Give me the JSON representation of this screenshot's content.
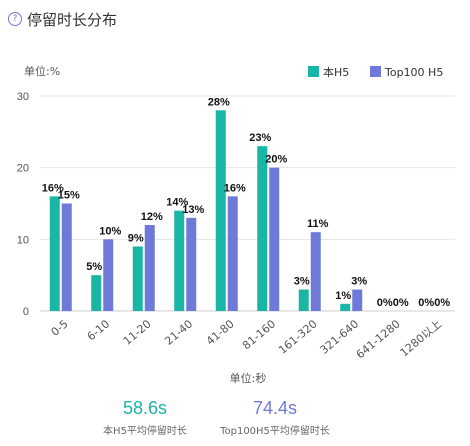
{
  "header": {
    "title": "停留时长分布",
    "help_icon": "help-circle-icon"
  },
  "chart_data": {
    "type": "bar",
    "ylabel": "单位:%",
    "xlabel": "单位:秒",
    "ylim": [
      0,
      30
    ],
    "yticks": [
      0,
      10,
      20,
      30
    ],
    "grid": true,
    "legend_position": "top-right",
    "categories": [
      "0-5",
      "6-10",
      "11-20",
      "21-40",
      "41-80",
      "81-160",
      "161-320",
      "321-640",
      "641-1280",
      "1280以上"
    ],
    "series": [
      {
        "name": "本H5",
        "color": "#19b5a5",
        "values": [
          16,
          5,
          9,
          14,
          28,
          23,
          3,
          1,
          0,
          0
        ]
      },
      {
        "name": "Top100 H5",
        "color": "#6f7ad8",
        "values": [
          15,
          10,
          12,
          13,
          16,
          20,
          11,
          3,
          0,
          0
        ]
      }
    ]
  },
  "stats": [
    {
      "value": "58.6s",
      "label": "本H5平均停留时长",
      "color": "#19b5a5"
    },
    {
      "value": "74.4s",
      "label": "Top100H5平均停留时长",
      "color": "#6f7ad8"
    }
  ]
}
